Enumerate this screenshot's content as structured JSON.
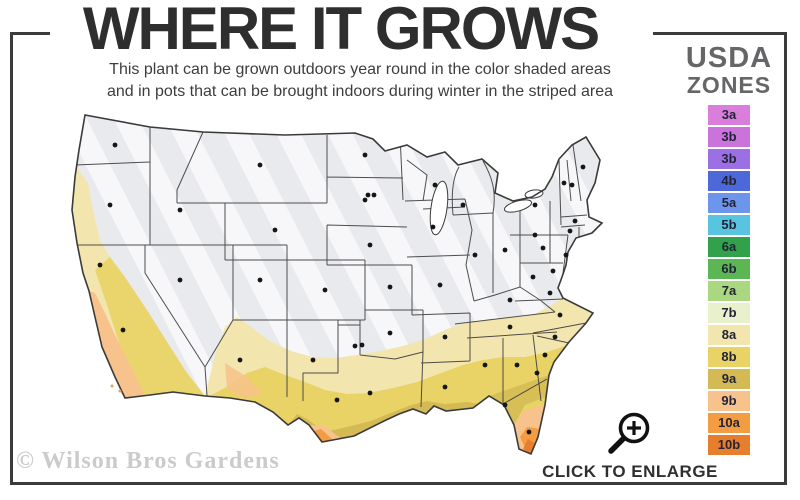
{
  "header": {
    "title": "WHERE IT GROWS",
    "subtitle_line1": "This plant can be grown outdoors year round in the color shaded areas",
    "subtitle_line2": "and in pots that can be brought indoors during winter in the striped area"
  },
  "legend": {
    "title_line1": "USDA",
    "title_line2": "ZONES",
    "zones": [
      {
        "label": "3a",
        "color": "#d97fdb"
      },
      {
        "label": "3b",
        "color": "#c973db"
      },
      {
        "label": "3b",
        "color": "#9d6fe4"
      },
      {
        "label": "4b",
        "color": "#4d68d9"
      },
      {
        "label": "5a",
        "color": "#6e95ec"
      },
      {
        "label": "5b",
        "color": "#58c4df"
      },
      {
        "label": "6a",
        "color": "#31a24b"
      },
      {
        "label": "6b",
        "color": "#5cb654"
      },
      {
        "label": "7a",
        "color": "#a9d880"
      },
      {
        "label": "7b",
        "color": "#e8f0cc"
      },
      {
        "label": "8a",
        "color": "#f2e6ae"
      },
      {
        "label": "8b",
        "color": "#e9d366"
      },
      {
        "label": "9a",
        "color": "#d4ba55"
      },
      {
        "label": "9b",
        "color": "#f7c28b"
      },
      {
        "label": "10a",
        "color": "#f39c42"
      },
      {
        "label": "10b",
        "color": "#e67e2e"
      }
    ]
  },
  "map": {
    "base_color": "#e9eaee",
    "stripe_color": "#ffffff",
    "outline_color": "#3a3a3a",
    "dot_color": "#161616"
  },
  "footer": {
    "watermark": "© Wilson Bros Gardens",
    "cta": "CLICK TO ENLARGE"
  }
}
